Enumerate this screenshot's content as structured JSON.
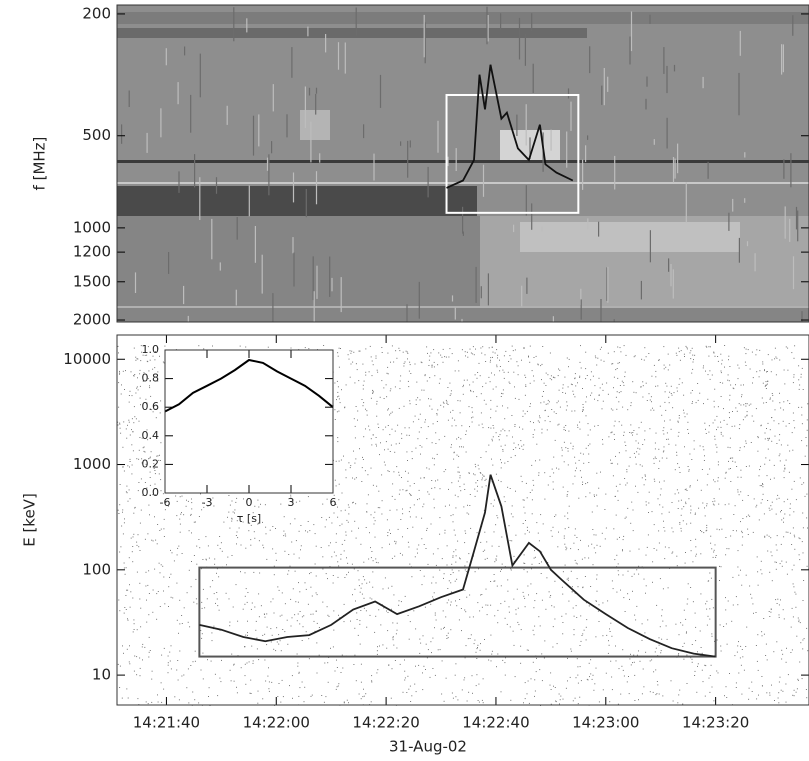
{
  "chart_data": [
    {
      "type": "spectrogram",
      "ylabel": "f [MHz]",
      "ylog": true,
      "yreverse": true,
      "ylim": [
        187,
        2030
      ],
      "yticks": [
        200,
        500,
        1000,
        1200,
        1500,
        2000
      ],
      "xlim": [
        "14:21:31",
        "14:23:37"
      ],
      "series": [
        {
          "color": "#111111",
          "x": [
            "14:22:31",
            "14:22:34",
            "14:22:36",
            "14:22:37",
            "14:22:38",
            "14:22:39",
            "14:22:41",
            "14:22:42",
            "14:22:44",
            "14:22:46",
            "14:22:48",
            "14:22:49",
            "14:22:51",
            "14:22:54"
          ],
          "values": [
            740,
            700,
            600,
            316,
            410,
            293,
            440,
            420,
            550,
            600,
            460,
            620,
            660,
            700
          ]
        }
      ],
      "box": {
        "color": "#ffffff",
        "x": [
          "14:22:31",
          "14:22:55"
        ],
        "y": [
          368,
          893
        ]
      }
    },
    {
      "type": "line",
      "xlabel": "31-Aug-02",
      "ylabel": "E [keV]",
      "ylog": true,
      "ylim": [
        5.2,
        17000
      ],
      "yticks": [
        10,
        100,
        1000,
        10000
      ],
      "xlim": [
        "14:21:31",
        "14:23:37"
      ],
      "xticks": [
        "14:21:40",
        "14:22:00",
        "14:22:20",
        "14:22:40",
        "14:23:00",
        "14:23:20"
      ],
      "series": [
        {
          "color": "#222222",
          "x": [
            "14:21:46",
            "14:21:50",
            "14:21:54",
            "14:21:58",
            "14:22:02",
            "14:22:06",
            "14:22:10",
            "14:22:14",
            "14:22:18",
            "14:22:22",
            "14:22:26",
            "14:22:30",
            "14:22:34",
            "14:22:36",
            "14:22:38",
            "14:22:39",
            "14:22:41",
            "14:22:43",
            "14:22:46",
            "14:22:48",
            "14:22:50",
            "14:22:52",
            "14:22:56",
            "14:23:00",
            "14:23:04",
            "14:23:08",
            "14:23:12",
            "14:23:16",
            "14:23:20"
          ],
          "values": [
            30,
            27,
            23,
            21,
            23,
            24,
            30,
            42,
            50,
            38,
            45,
            55,
            65,
            150,
            350,
            800,
            400,
            110,
            180,
            150,
            100,
            80,
            52,
            38,
            28,
            22,
            18,
            16,
            15
          ]
        }
      ],
      "box": {
        "color": "#555555",
        "x": [
          "14:21:46",
          "14:23:20"
        ],
        "y": [
          15,
          105
        ]
      }
    },
    {
      "type": "line",
      "xlabel": "τ [s]",
      "xlim": [
        -6,
        6
      ],
      "xticks": [
        -6,
        -3,
        0,
        3,
        6
      ],
      "ylim": [
        0,
        1
      ],
      "yticks": [
        {
          "value": 0,
          "label": "0.0"
        },
        {
          "value": 0.2,
          "label": "0.2"
        },
        {
          "value": 0.4,
          "label": "0.4"
        },
        {
          "value": 0.6,
          "label": "0.6"
        },
        {
          "value": 0.8,
          "label": "0.8"
        },
        {
          "value": 1,
          "label": "1.0"
        }
      ],
      "series": [
        {
          "color": "#000000",
          "x": [
            -6,
            -5,
            -4,
            -3,
            -2,
            -1,
            0,
            1,
            2,
            3,
            4,
            5,
            6
          ],
          "values": [
            0.57,
            0.62,
            0.7,
            0.75,
            0.8,
            0.86,
            0.93,
            0.91,
            0.85,
            0.8,
            0.75,
            0.68,
            0.6
          ]
        }
      ]
    }
  ]
}
